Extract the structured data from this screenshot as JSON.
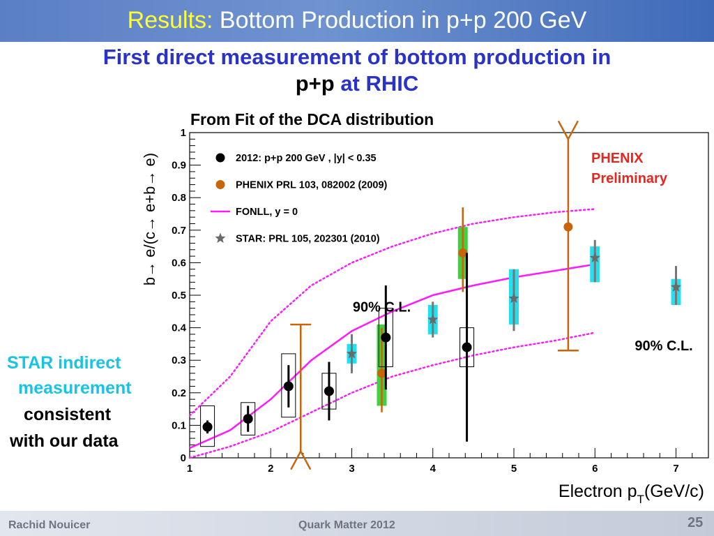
{
  "slide": {
    "title_prefix": "Results:",
    "title_rest": " Bottom Production in p+p 200 GeV",
    "subtitle_line1": "First direct measurement of bottom production in",
    "subtitle_pp": "p+p",
    "subtitle_rest": " at RHIC",
    "dca_label": "From Fit of the DCA distribution",
    "side_note": [
      "STAR indirect",
      "measurement",
      "consistent",
      "with our data"
    ],
    "footer_author": "Rachid Nouicer",
    "footer_conf": "Quark Matter 2012",
    "page_number": "25"
  },
  "colors": {
    "banner": "#5b7fc4",
    "title_highlight": "#ffff33",
    "subtitle": "#2a33c9",
    "side_note_cyan": "#19c3e3",
    "phenix_2012": "#000000",
    "phenix_prl": "#c8650a",
    "fonll": "#ff19ff",
    "star": "#6a6a6a",
    "sys_cyan": "#22e0f0",
    "sys_green": "#3fd13f",
    "preliminary": "#e8261e"
  },
  "chart_data": {
    "type": "scatter",
    "xlabel_main": "Electron p",
    "xlabel_sub": "T",
    "xlabel_unit": "(GeV/c)",
    "ylabel": "b→ e/(c→ e+b→ e)",
    "xlim": [
      1,
      7.4
    ],
    "ylim": [
      0,
      1
    ],
    "x_ticks": [
      "1",
      "2",
      "3",
      "4",
      "5",
      "6",
      "7"
    ],
    "y_ticks": [
      "0",
      "0.1",
      "0.2",
      "0.3",
      "0.4",
      "0.5",
      "0.6",
      "0.7",
      "0.8",
      "0.9",
      "1"
    ],
    "preliminary_text": [
      "PHENIX",
      "Preliminary"
    ],
    "cl_labels": [
      {
        "text": "90% C.L.",
        "x": 3.37,
        "y": 0.45
      },
      {
        "text": "90% C.L.",
        "x": 6.85,
        "y": 0.33
      }
    ],
    "legend": [
      {
        "marker": "black-circle",
        "label": "2012: p+p 200 GeV   , |y| < 0.35"
      },
      {
        "marker": "orange-circle",
        "label": "PHENIX PRL 103, 082002 (2009)"
      },
      {
        "marker": "magenta-line",
        "label": "FONLL, y = 0"
      },
      {
        "marker": "star",
        "label": "STAR: PRL 105, 202301 (2010)"
      }
    ],
    "series": [
      {
        "name": "2012: p+p 200 GeV   , |y| < 0.35",
        "points": [
          {
            "x": 1.22,
            "y": 0.095,
            "err": 0.02,
            "sys": [
              0.035,
              0.16
            ]
          },
          {
            "x": 1.72,
            "y": 0.12,
            "err": 0.04,
            "sys": [
              0.07,
              0.17
            ]
          },
          {
            "x": 2.22,
            "y": 0.22,
            "err": 0.065,
            "sys": [
              0.125,
              0.32
            ]
          },
          {
            "x": 2.72,
            "y": 0.205,
            "err": 0.09,
            "sys": [
              0.15,
              0.26
            ]
          },
          {
            "x": 3.42,
            "y": 0.37,
            "err": 0.16,
            "sys": [
              0.28,
              0.46
            ]
          },
          {
            "x": 4.42,
            "y": 0.34,
            "err": 0.29,
            "sys": [
              0.28,
              0.4
            ]
          }
        ]
      },
      {
        "name": "PHENIX PRL 103, 082002 (2009)",
        "points": [
          {
            "x": 3.37,
            "y": 0.26,
            "lo": 0.14,
            "hi": 0.4,
            "sys": [
              0.16,
              0.41
            ]
          },
          {
            "x": 4.37,
            "y": 0.63,
            "lo": 0.51,
            "hi": 0.77,
            "sys": [
              0.55,
              0.71
            ]
          },
          {
            "x": 5.67,
            "y": 0.71,
            "lo": null,
            "hi": null,
            "sys": null
          }
        ]
      },
      {
        "name": "STAR: PRL 105, 202301 (2010)",
        "points": [
          {
            "x": 3.0,
            "y": 0.32,
            "lo": 0.26,
            "hi": 0.38,
            "sys": [
              0.29,
              0.35
            ]
          },
          {
            "x": 4.0,
            "y": 0.425,
            "lo": 0.37,
            "hi": 0.48,
            "sys": [
              0.38,
              0.47
            ]
          },
          {
            "x": 5.0,
            "y": 0.49,
            "lo": 0.39,
            "hi": 0.58,
            "sys": [
              0.41,
              0.58
            ]
          },
          {
            "x": 6.0,
            "y": 0.615,
            "lo": 0.54,
            "hi": 0.67,
            "sys": [
              0.54,
              0.65
            ]
          },
          {
            "x": 7.0,
            "y": 0.525,
            "lo": 0.47,
            "hi": 0.59,
            "sys": [
              0.47,
              0.55
            ]
          }
        ]
      },
      {
        "name": "FONLL, y = 0",
        "x": [
          1.0,
          1.5,
          2.0,
          2.5,
          3.0,
          3.5,
          4.0,
          4.5,
          5.0,
          5.5,
          6.0
        ],
        "central": [
          0.03,
          0.085,
          0.18,
          0.3,
          0.39,
          0.45,
          0.5,
          0.53,
          0.555,
          0.575,
          0.595
        ],
        "upper": [
          0.13,
          0.25,
          0.42,
          0.53,
          0.6,
          0.65,
          0.69,
          0.72,
          0.74,
          0.755,
          0.765
        ],
        "lower": [
          0.0,
          0.035,
          0.08,
          0.14,
          0.2,
          0.25,
          0.285,
          0.315,
          0.34,
          0.36,
          0.385
        ]
      }
    ],
    "limit_arrows": [
      {
        "x": 2.37,
        "from": 0.41,
        "to": 0.02,
        "dir": "down"
      },
      {
        "x": 5.67,
        "from": 0.33,
        "to": 0.98,
        "dir": "up"
      }
    ]
  }
}
